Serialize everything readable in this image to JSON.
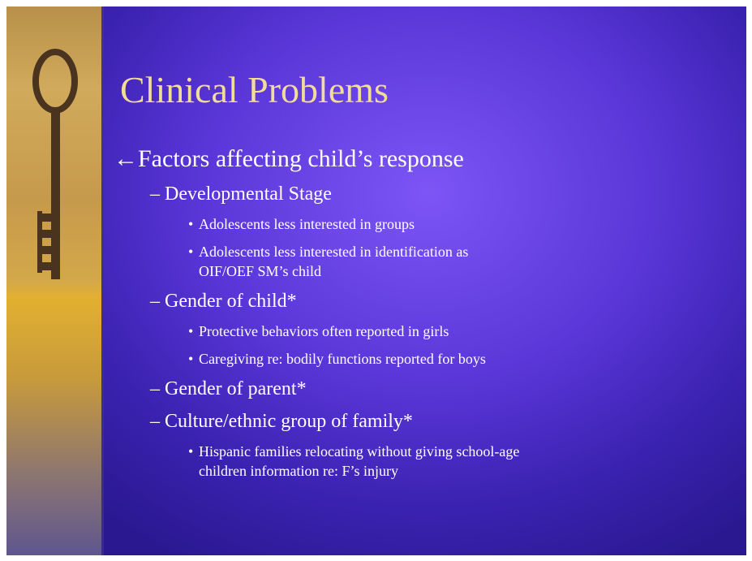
{
  "slide": {
    "title": "Clinical Problems",
    "bullet": "•",
    "points": [
      {
        "text": "←Factors affecting child’s response",
        "subpoints": [
          {
            "text": "– Developmental Stage",
            "bullets": [
              [
                "Adolescents less interested in groups"
              ],
              [
                "Adolescents less interested in identification as",
                "OIF/OEF SM’s child"
              ]
            ]
          },
          {
            "text": "– Gender of child*",
            "bullets": [
              [
                "Protective behaviors often reported in girls"
              ],
              [
                "Caregiving re: bodily functions reported for boys"
              ]
            ]
          },
          {
            "text": "– Gender of parent*",
            "bullets": []
          },
          {
            "text": "– Culture/ethnic group of family*",
            "bullets": [
              [
                "Hispanic families relocating without giving school-age",
                "children information re: F’s injury"
              ]
            ]
          }
        ]
      }
    ]
  }
}
